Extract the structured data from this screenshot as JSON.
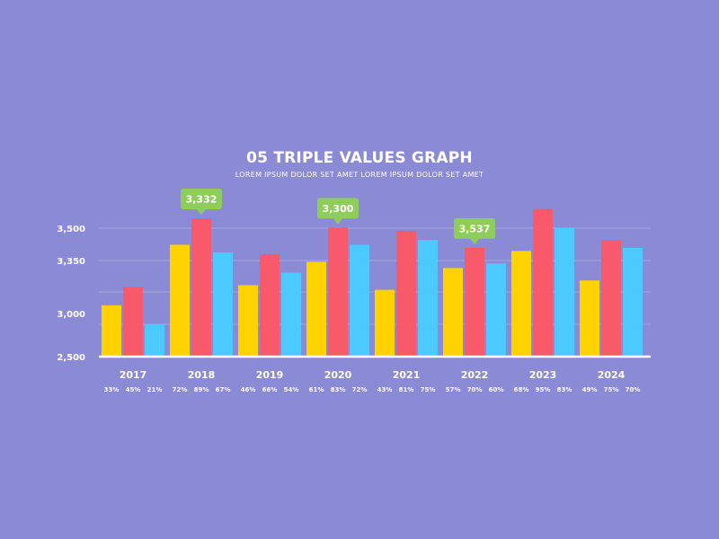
{
  "colors": {
    "background": "#8b8ad4",
    "series_1": "#ffd200",
    "series_2": "#f85a6c",
    "series_3": "#4ccaff",
    "callout": "#8ecd5a",
    "grid": "#a7a6e0",
    "axis": "#ffffff"
  },
  "chart_data": {
    "type": "bar",
    "title": "05 TRIPLE VALUES GRAPH",
    "subtitle": "LOREM IPSUM DOLOR SET AMET LOREM IPSUM DOLOR SET AMET",
    "categories": [
      "2017",
      "2018",
      "2019",
      "2020",
      "2021",
      "2022",
      "2023",
      "2024"
    ],
    "y_tick_labels": [
      "2,500",
      "3,000",
      "3,350",
      "3,500"
    ],
    "ylim": [
      0,
      100
    ],
    "grid": true,
    "series": [
      {
        "values": [
          33,
          72,
          46,
          61,
          43,
          57,
          68,
          49
        ]
      },
      {
        "values": [
          45,
          89,
          66,
          83,
          81,
          70,
          95,
          75
        ]
      },
      {
        "values": [
          21,
          67,
          54,
          72,
          75,
          60,
          83,
          70
        ]
      }
    ],
    "percent_labels": [
      [
        "33%",
        "45%",
        "21%"
      ],
      [
        "72%",
        "89%",
        "67%"
      ],
      [
        "46%",
        "66%",
        "54%"
      ],
      [
        "61%",
        "83%",
        "72%"
      ],
      [
        "43%",
        "81%",
        "75%"
      ],
      [
        "57%",
        "70%",
        "60%"
      ],
      [
        "68%",
        "95%",
        "83%"
      ],
      [
        "49%",
        "75%",
        "70%"
      ]
    ],
    "callouts": [
      {
        "category": "2018",
        "series": 1,
        "text": "3,332"
      },
      {
        "category": "2020",
        "series": 1,
        "text": "3,300"
      },
      {
        "category": "2022",
        "series": 1,
        "text": "3,537"
      }
    ]
  }
}
